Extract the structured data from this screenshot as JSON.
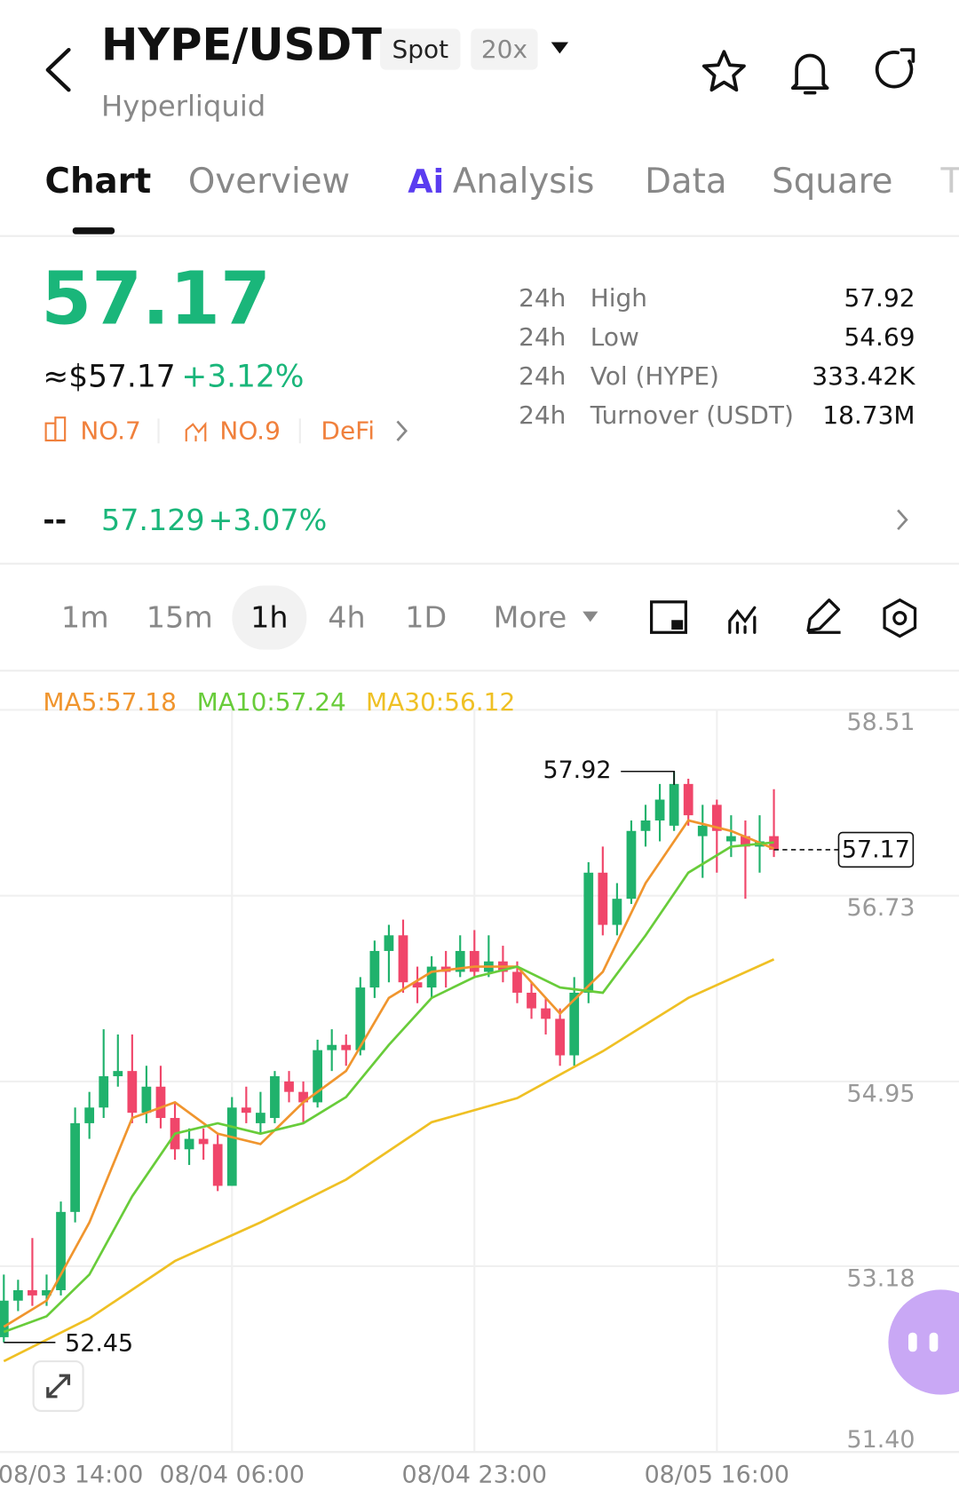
{
  "header": {
    "pair": "HYPE/USDT",
    "market": "Spot",
    "leverage": "20x",
    "exchange": "Hyperliquid"
  },
  "tabs": [
    "Chart",
    "Overview",
    "Analysis",
    "Data",
    "Square",
    "T"
  ],
  "ai_badge": "Ai",
  "ticker": {
    "price": "57.17",
    "usd_price": "≈$57.17",
    "change": "+3.12%",
    "rank_market": "NO.7",
    "rank_hot": "NO.9",
    "sector": "DeFi",
    "stats": [
      {
        "period": "24h",
        "label": "High",
        "value": "57.92"
      },
      {
        "period": "24h",
        "label": "Low",
        "value": "54.69"
      },
      {
        "period": "24h",
        "label": "Vol (HYPE)",
        "value": "333.42K"
      },
      {
        "period": "24h",
        "label": "Turnover (USDT)",
        "value": "18.73M"
      }
    ],
    "index_name": "--",
    "index_value": "57.129",
    "index_change": "+3.07%"
  },
  "intervals": [
    "1m",
    "15m",
    "1h",
    "4h",
    "1D",
    "More"
  ],
  "active_interval": "1h",
  "chart_data": {
    "type": "candlestick",
    "categories": [
      "08/03 14:00",
      null,
      null,
      null,
      null,
      null,
      null,
      null,
      null,
      null,
      null,
      null,
      null,
      null,
      null,
      null,
      "08/04 06:00",
      null,
      null,
      null,
      null,
      null,
      null,
      null,
      null,
      null,
      null,
      null,
      null,
      null,
      null,
      null,
      null,
      "08/04 23:00",
      null,
      null,
      null,
      null,
      null,
      null,
      null,
      null,
      null,
      null,
      null,
      null,
      null,
      null,
      null,
      null,
      "08/05 16:00",
      null,
      null,
      null,
      null
    ],
    "open": [
      52.5,
      52.85,
      52.95,
      52.9,
      52.95,
      53.7,
      54.55,
      54.7,
      55.0,
      55.05,
      54.65,
      54.9,
      54.6,
      54.3,
      54.4,
      54.35,
      53.95,
      54.7,
      54.55,
      54.6,
      54.95,
      54.85,
      54.75,
      55.25,
      55.3,
      55.25,
      55.85,
      56.2,
      56.35,
      55.9,
      55.85,
      56.05,
      56.0,
      56.2,
      56.0,
      56.1,
      56.0,
      55.8,
      55.65,
      55.55,
      55.2,
      55.8,
      56.95,
      56.45,
      56.7,
      57.35,
      57.45,
      57.4,
      57.8,
      57.3,
      57.6,
      57.25,
      57.3,
      57.2,
      57.3
    ],
    "high": [
      53.1,
      53.05,
      53.45,
      53.1,
      53.8,
      54.7,
      54.85,
      55.45,
      55.4,
      55.4,
      55.1,
      55.1,
      54.75,
      54.5,
      54.5,
      54.45,
      54.8,
      54.9,
      54.85,
      55.05,
      55.05,
      54.95,
      55.35,
      55.45,
      55.4,
      55.95,
      56.3,
      56.45,
      56.5,
      56.05,
      56.15,
      56.2,
      56.35,
      56.4,
      56.35,
      56.25,
      56.1,
      55.9,
      55.75,
      55.65,
      55.95,
      57.05,
      57.2,
      56.85,
      57.45,
      57.6,
      57.8,
      57.92,
      57.85,
      57.6,
      57.65,
      57.5,
      57.45,
      57.5,
      57.75
    ],
    "low": [
      52.45,
      52.75,
      52.8,
      52.8,
      52.9,
      53.6,
      54.4,
      54.6,
      54.9,
      54.55,
      54.55,
      54.5,
      54.2,
      54.15,
      54.2,
      53.9,
      53.95,
      54.55,
      54.45,
      54.55,
      54.75,
      54.55,
      54.7,
      55.05,
      55.1,
      55.2,
      55.75,
      55.9,
      55.8,
      55.7,
      55.75,
      55.85,
      55.95,
      55.95,
      55.95,
      55.9,
      55.7,
      55.55,
      55.4,
      55.1,
      55.1,
      55.7,
      56.35,
      56.35,
      56.65,
      57.2,
      57.25,
      57.35,
      57.4,
      56.9,
      56.95,
      57.1,
      56.7,
      56.95,
      57.1
    ],
    "close": [
      52.85,
      52.95,
      52.9,
      52.95,
      53.7,
      54.55,
      54.7,
      55.0,
      55.05,
      54.65,
      54.9,
      54.6,
      54.3,
      54.4,
      54.35,
      53.95,
      54.7,
      54.65,
      54.65,
      55.0,
      54.85,
      54.75,
      55.25,
      55.3,
      55.25,
      55.85,
      56.2,
      56.35,
      55.9,
      55.85,
      56.05,
      56.0,
      56.2,
      56.0,
      56.1,
      56.0,
      55.8,
      55.65,
      55.55,
      55.2,
      55.8,
      56.95,
      56.45,
      56.7,
      57.35,
      57.45,
      57.65,
      57.8,
      57.5,
      57.4,
      57.35,
      57.3,
      57.2,
      57.25,
      57.17
    ],
    "up_color": "#20b26c",
    "down_color": "#f0466a",
    "series": [
      {
        "name": "MA5:57.18",
        "color": "#f0952e",
        "x": [
          0,
          3,
          6,
          9,
          12,
          15,
          18,
          21,
          24,
          27,
          30,
          33,
          36,
          39,
          42,
          45,
          48,
          51,
          54
        ],
        "values": [
          52.6,
          52.85,
          53.6,
          54.6,
          54.75,
          54.45,
          54.35,
          54.75,
          55.05,
          55.75,
          56.0,
          56.05,
          56.05,
          55.6,
          56.0,
          56.85,
          57.45,
          57.35,
          57.18
        ]
      },
      {
        "name": "MA10:57.24",
        "color": "#68cc3a",
        "x": [
          0,
          3,
          6,
          9,
          12,
          15,
          18,
          21,
          24,
          27,
          30,
          33,
          36,
          39,
          42,
          45,
          48,
          51,
          54
        ],
        "values": [
          52.55,
          52.7,
          53.1,
          53.85,
          54.45,
          54.55,
          54.45,
          54.55,
          54.8,
          55.3,
          55.75,
          55.95,
          56.05,
          55.85,
          55.8,
          56.35,
          56.95,
          57.2,
          57.24
        ]
      },
      {
        "name": "MA30:56.12",
        "color": "#efc024",
        "x": [
          0,
          6,
          12,
          18,
          24,
          30,
          36,
          42,
          48,
          54
        ],
        "values": [
          52.27,
          52.68,
          53.23,
          53.6,
          54.01,
          54.56,
          54.79,
          55.24,
          55.75,
          56.12
        ]
      }
    ],
    "ylim": [
      51.4,
      58.51
    ],
    "yticks": [
      58.51,
      56.73,
      54.95,
      53.18,
      {
        "value": 51.4,
        "label": "51.40"
      }
    ],
    "grid": true,
    "high_marker": 57.92,
    "low_marker": 52.45,
    "last_price": 57.17
  }
}
